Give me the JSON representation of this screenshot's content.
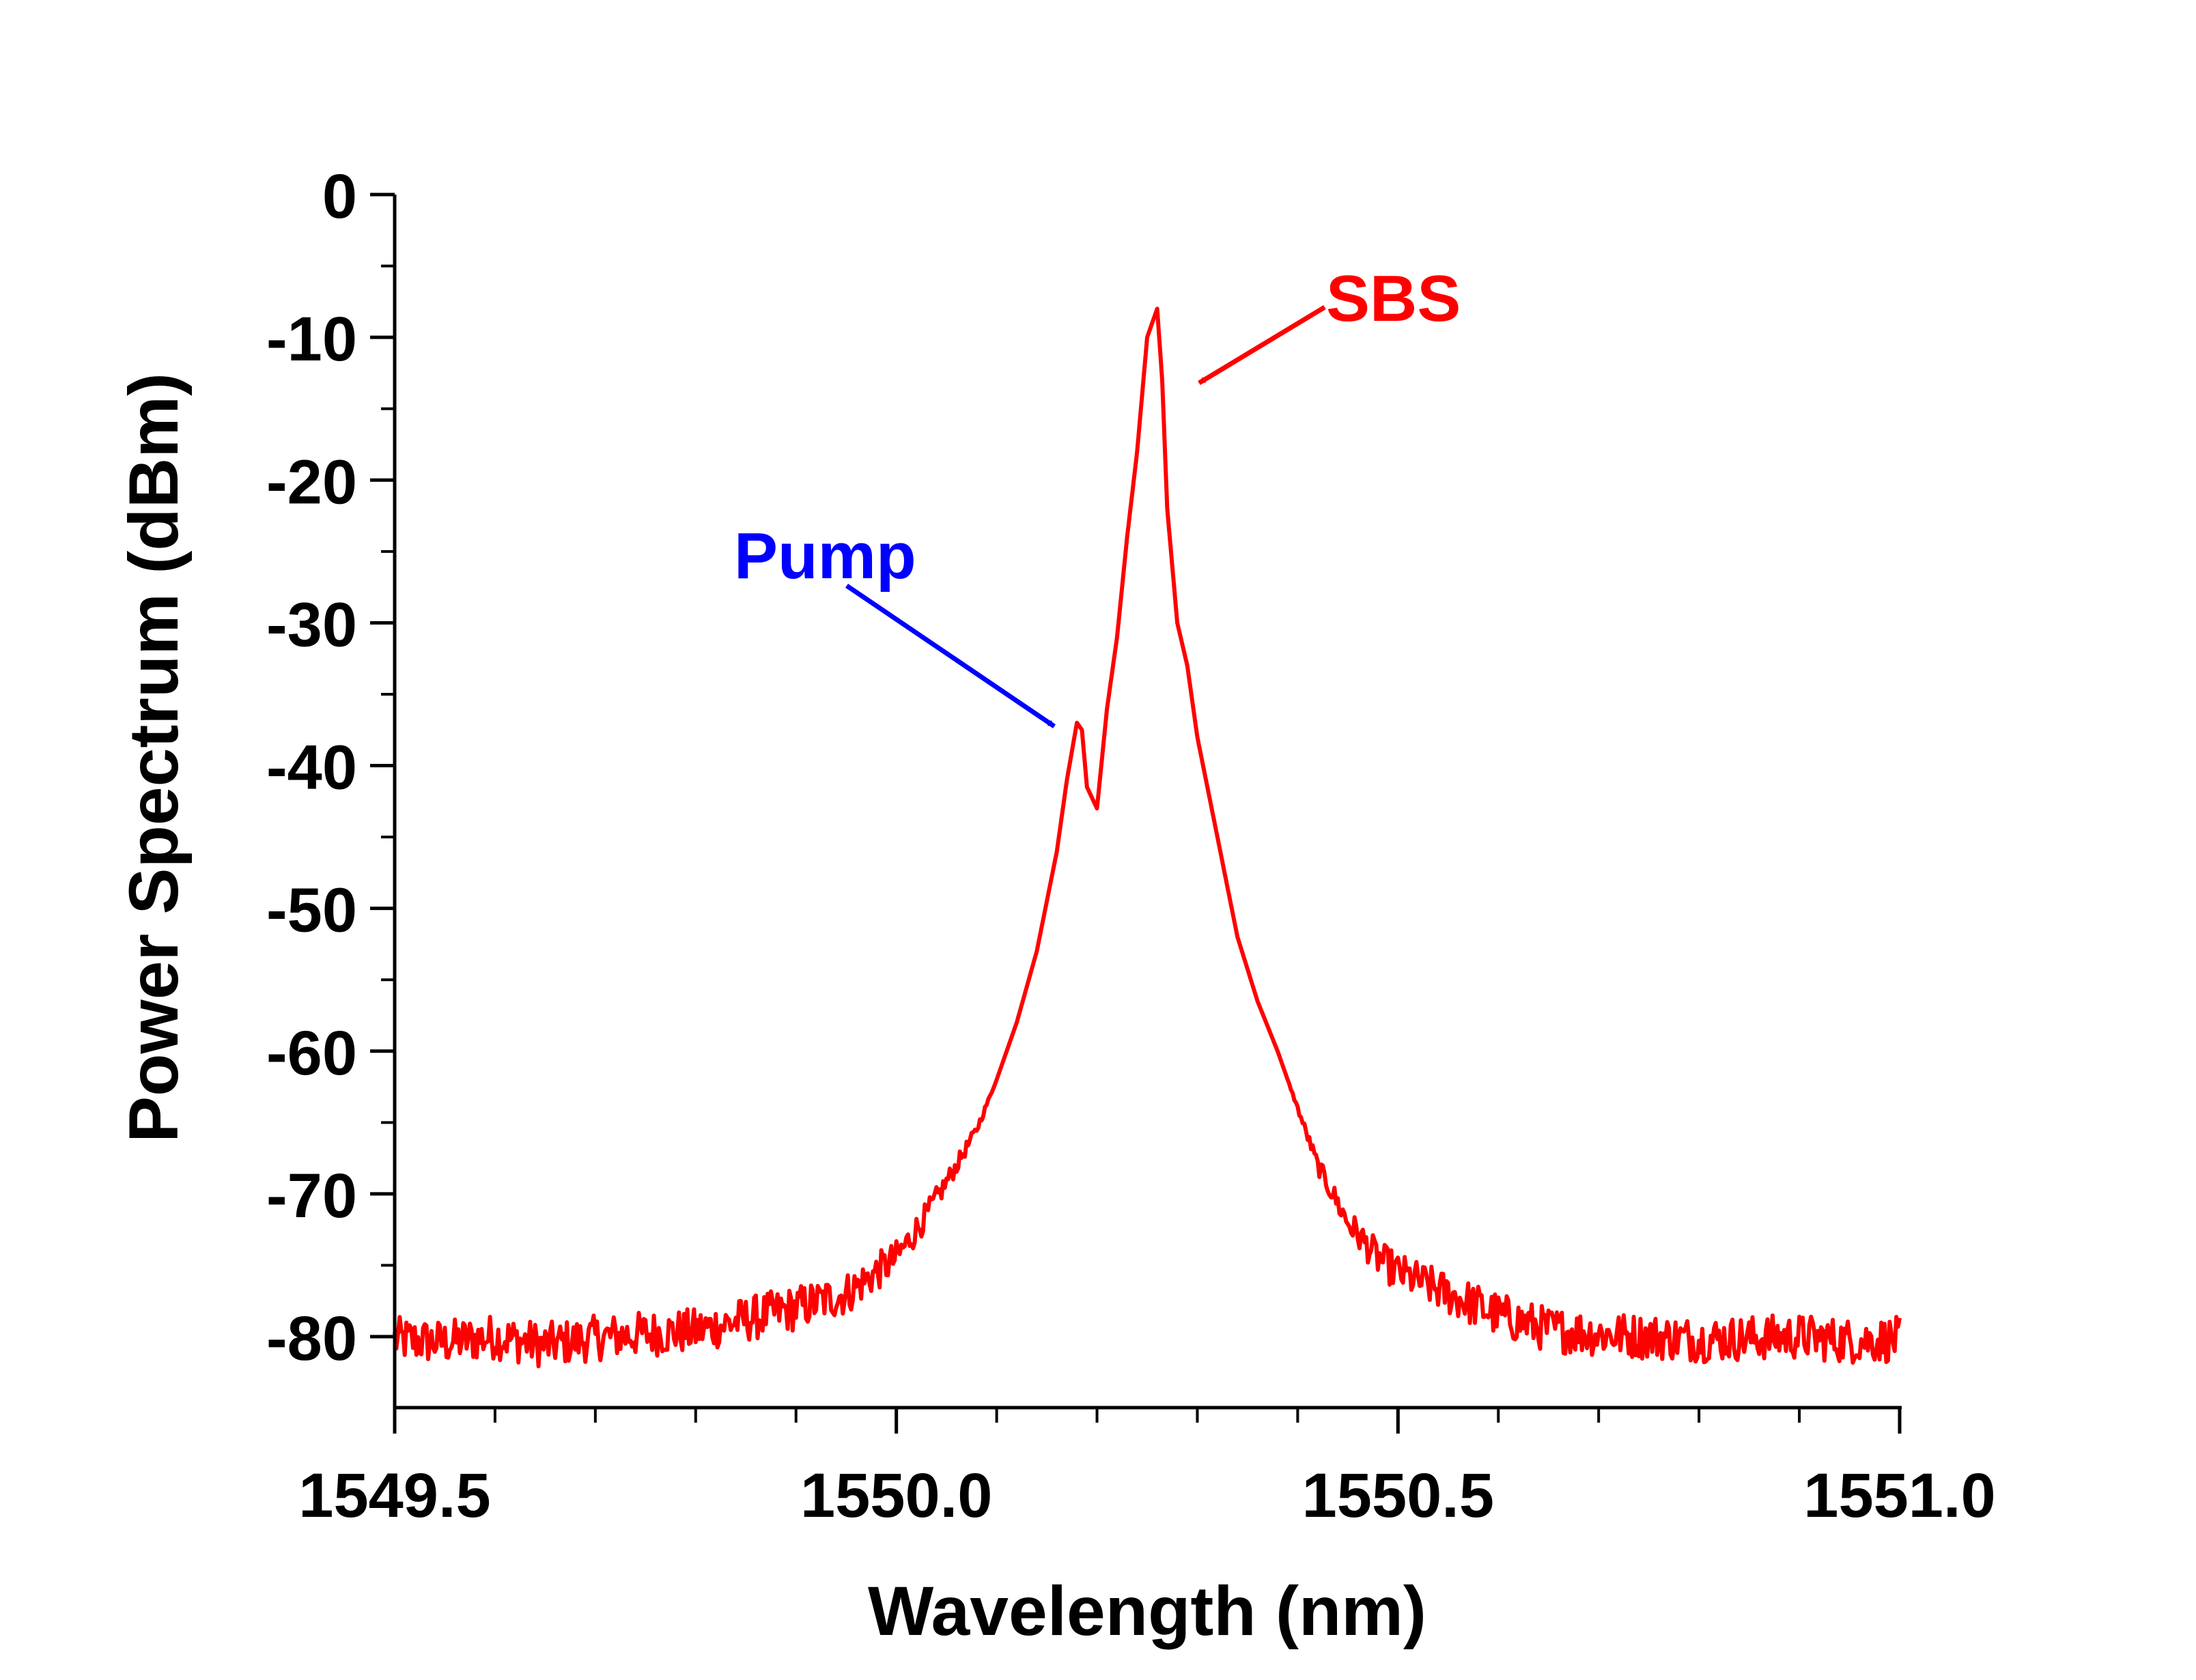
{
  "chart_data": {
    "type": "line",
    "title": "",
    "xlabel": "Wavelength (nm)",
    "ylabel": "Power Spectrum (dBm)",
    "xlim": [
      1549.5,
      1551.0
    ],
    "ylim": [
      -85,
      0
    ],
    "x_ticks": [
      1549.5,
      1550.0,
      1550.5,
      1551.0
    ],
    "x_tick_labels": [
      "1549.5",
      "1550.0",
      "1550.5",
      "1551.0"
    ],
    "y_ticks": [
      0,
      -10,
      -20,
      -30,
      -40,
      -50,
      -60,
      -70,
      -80
    ],
    "y_tick_labels": [
      "0",
      "-10",
      "-20",
      "-30",
      "-40",
      "-50",
      "-60",
      "-70",
      "-80"
    ],
    "grid": false,
    "legend": "none",
    "series": [
      {
        "color": "#ff0000",
        "x": [
          1549.5,
          1549.55,
          1549.6,
          1549.65,
          1549.7,
          1549.75,
          1549.8,
          1549.85,
          1549.9,
          1549.95,
          1550.0,
          1550.03,
          1550.06,
          1550.08,
          1550.1,
          1550.12,
          1550.14,
          1550.15,
          1550.16,
          1550.17,
          1550.18,
          1550.185,
          1550.19,
          1550.2,
          1550.21,
          1550.22,
          1550.23,
          1550.24,
          1550.25,
          1550.26,
          1550.265,
          1550.27,
          1550.28,
          1550.29,
          1550.3,
          1550.32,
          1550.34,
          1550.36,
          1550.38,
          1550.4,
          1550.42,
          1550.45,
          1550.48,
          1550.5,
          1550.55,
          1550.6,
          1550.65,
          1550.7,
          1550.75,
          1550.8,
          1550.85,
          1550.9,
          1550.95,
          1551.0
        ],
        "y": [
          -80.2,
          -80.4,
          -80.0,
          -80.6,
          -80.1,
          -79.8,
          -79.6,
          -78.8,
          -78.0,
          -77.0,
          -74.5,
          -71.5,
          -68.0,
          -65.5,
          -62.0,
          -58.0,
          -53.0,
          -49.5,
          -46.0,
          -41.0,
          -37.0,
          -37.5,
          -41.5,
          -43.0,
          -36.0,
          -31.0,
          -24.0,
          -18.0,
          -10.0,
          -8.0,
          -13.0,
          -22.0,
          -30.0,
          -33.0,
          -38.0,
          -45.0,
          -52.0,
          -56.5,
          -60.0,
          -64.0,
          -68.0,
          -72.0,
          -74.5,
          -75.5,
          -77.0,
          -78.5,
          -79.5,
          -79.8,
          -80.0,
          -80.2,
          -80.1,
          -80.0,
          -80.3,
          -80.2
        ]
      }
    ],
    "annotations": [
      {
        "text": "SBS",
        "color": "#ff0000",
        "points_to": [
          1550.265,
          -13.2
        ],
        "label_at": [
          1550.51,
          -7.0
        ]
      },
      {
        "text": "Pump",
        "color": "#0000ff",
        "points_to": [
          1550.165,
          -37.0
        ],
        "label_at": [
          1550.0,
          -25.0
        ]
      }
    ]
  }
}
